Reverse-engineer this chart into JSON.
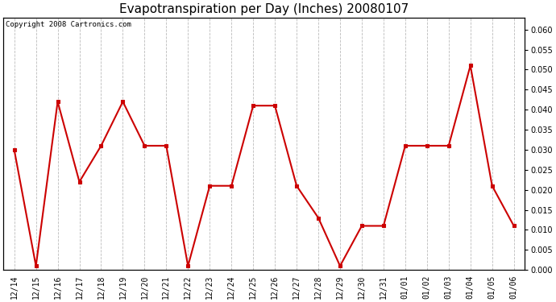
{
  "title": "Evapotranspiration per Day (Inches) 20080107",
  "copyright_text": "Copyright 2008 Cartronics.com",
  "x_labels": [
    "12/14",
    "12/15",
    "12/16",
    "12/17",
    "12/18",
    "12/19",
    "12/20",
    "12/21",
    "12/22",
    "12/23",
    "12/24",
    "12/25",
    "12/26",
    "12/27",
    "12/28",
    "12/29",
    "12/30",
    "12/31",
    "01/01",
    "01/02",
    "01/03",
    "01/04",
    "01/05",
    "01/06"
  ],
  "y_values": [
    0.03,
    0.001,
    0.042,
    0.022,
    0.031,
    0.042,
    0.031,
    0.031,
    0.001,
    0.021,
    0.021,
    0.041,
    0.041,
    0.021,
    0.013,
    0.001,
    0.011,
    0.011,
    0.031,
    0.031,
    0.031,
    0.051,
    0.021,
    0.011
  ],
  "line_color": "#cc0000",
  "marker": "s",
  "marker_size": 3,
  "marker_edge_width": 0.8,
  "line_width": 1.5,
  "ylim": [
    0.0,
    0.063
  ],
  "yticks": [
    0.0,
    0.005,
    0.01,
    0.015,
    0.02,
    0.025,
    0.03,
    0.035,
    0.04,
    0.045,
    0.05,
    0.055,
    0.06
  ],
  "background_color": "#ffffff",
  "grid_color": "#bbbbbb",
  "title_fontsize": 11,
  "copyright_fontsize": 6.5,
  "tick_fontsize": 7,
  "grid_linestyle": "--"
}
